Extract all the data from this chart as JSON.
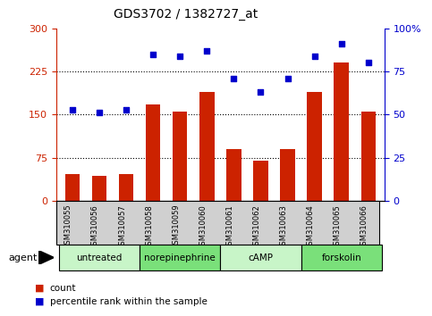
{
  "title": "GDS3702 / 1382727_at",
  "samples": [
    "GSM310055",
    "GSM310056",
    "GSM310057",
    "GSM310058",
    "GSM310059",
    "GSM310060",
    "GSM310061",
    "GSM310062",
    "GSM310063",
    "GSM310064",
    "GSM310065",
    "GSM310066"
  ],
  "counts": [
    47,
    43,
    47,
    168,
    155,
    190,
    90,
    70,
    90,
    190,
    240,
    155
  ],
  "percentiles": [
    53,
    51,
    53,
    85,
    84,
    87,
    71,
    63,
    71,
    84,
    91,
    80
  ],
  "groups": [
    {
      "label": "untreated",
      "start": 0,
      "end": 3,
      "color": "#C8F5C8"
    },
    {
      "label": "norepinephrine",
      "start": 3,
      "end": 6,
      "color": "#7AE07A"
    },
    {
      "label": "cAMP",
      "start": 6,
      "end": 9,
      "color": "#C8F5C8"
    },
    {
      "label": "forskolin",
      "start": 9,
      "end": 12,
      "color": "#7AE07A"
    }
  ],
  "ylim_left": [
    0,
    300
  ],
  "ylim_right": [
    0,
    100
  ],
  "yticks_left": [
    0,
    75,
    150,
    225,
    300
  ],
  "ytick_labels_left": [
    "0",
    "75",
    "150",
    "225",
    "300"
  ],
  "yticks_right": [
    0,
    25,
    50,
    75,
    100
  ],
  "ytick_labels_right": [
    "0",
    "25",
    "50",
    "75",
    "100%"
  ],
  "bar_color": "#CC2200",
  "dot_color": "#0000CC",
  "label_bg": "#D0D0D0",
  "agent_label": "agent",
  "legend_count": "count",
  "legend_percentile": "percentile rank within the sample"
}
